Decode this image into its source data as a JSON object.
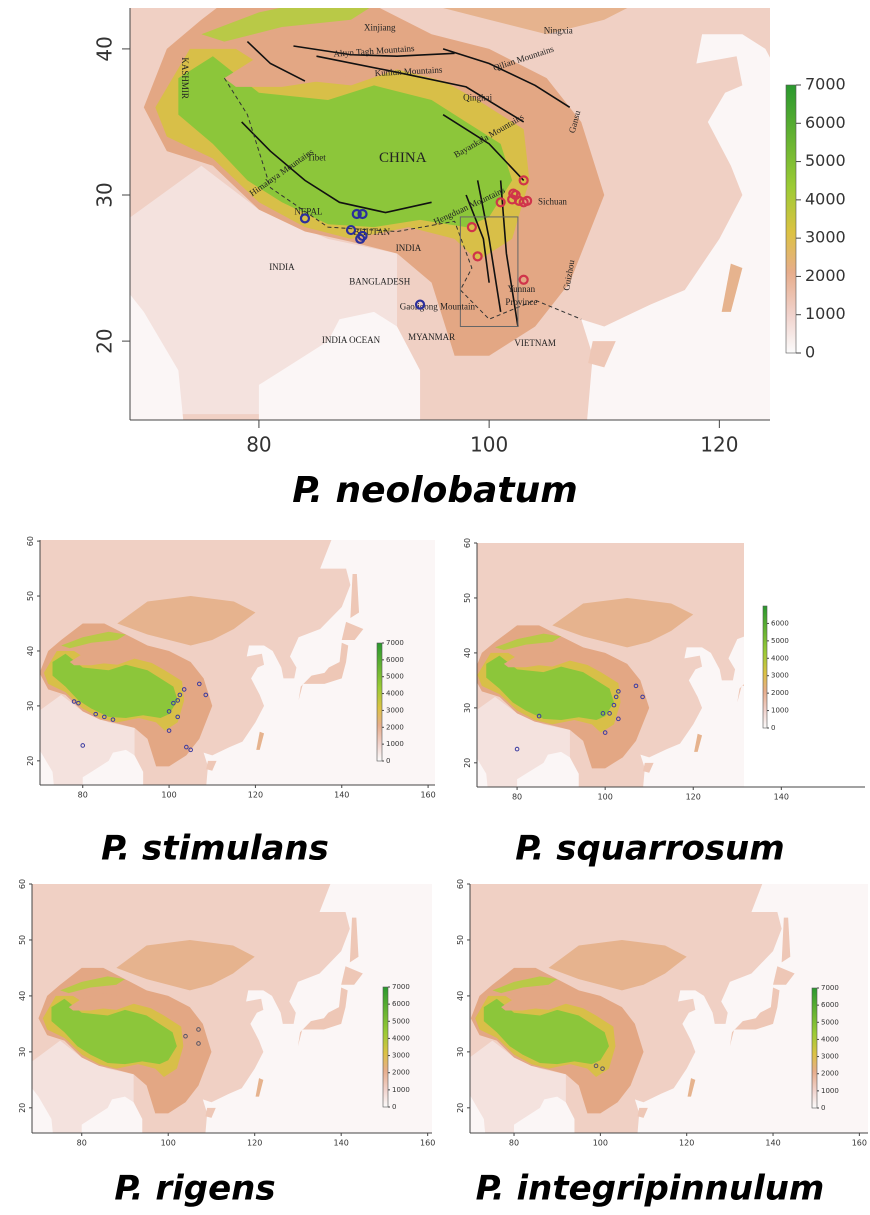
{
  "panels": [
    {
      "title": "P. neolobatum",
      "xlim": [
        68.8,
        124.4
      ],
      "ylim": [
        14.6,
        42.8
      ],
      "xticks": [
        80,
        100,
        120
      ],
      "yticks": [
        20,
        30,
        40
      ],
      "colorbar": {
        "lim": [
          0,
          7000
        ],
        "ticks": [
          0,
          1000,
          2000,
          3000,
          4000,
          5000,
          6000,
          7000
        ]
      },
      "points": [
        {
          "color": "#2b2f9c",
          "x": [
            84,
            88,
            88.5,
            89,
            89,
            88.8,
            94
          ],
          "y": [
            28.4,
            27.6,
            28.7,
            28.7,
            27.2,
            27,
            22.5
          ]
        },
        {
          "color": "#d0344a",
          "x": [
            98.5,
            99,
            101,
            102,
            102.3,
            102.6,
            103,
            103.3,
            103,
            103,
            102.1
          ],
          "y": [
            27.8,
            25.8,
            29.5,
            29.7,
            30,
            29.6,
            29.5,
            29.6,
            31,
            24.2,
            30.1
          ]
        }
      ],
      "labels": [
        "Xinjiang",
        "Altyn Tagh Mountains",
        "Qilian Mountains",
        "Ningxia",
        "Kunlun Mountains",
        "Qinghai",
        "Gansu",
        "Bayankala Mountains",
        "Tibet",
        "CHINA",
        "Sichuan",
        "Hengduan Mountains",
        "Himalaya Mountains",
        "KASHMIR",
        "NEPAL",
        "BHUTAN",
        "INDIA",
        "INDIA",
        "BANGLADESH",
        "Gaoligong Mountain",
        "MYANMAR",
        "INDIA OCEAN",
        "VIETNAM",
        "Yunnan",
        "Province",
        "Guizhou"
      ]
    },
    {
      "title": "P. stimulans",
      "xlim": [
        70.1,
        161.6
      ],
      "ylim": [
        15.6,
        60.2
      ],
      "xticks": [
        80,
        100,
        120,
        140,
        160
      ],
      "yticks": [
        20,
        30,
        40,
        50,
        60
      ],
      "colorbar": {
        "lim": [
          0,
          7000
        ],
        "ticks": [
          0,
          1000,
          2000,
          3000,
          4000,
          5000,
          6000,
          7000
        ]
      },
      "points": [
        {
          "color": "#3a3aa0",
          "x": [
            78,
            79,
            83,
            85,
            87,
            80,
            100,
            100,
            101,
            102,
            102.5,
            103.5,
            107,
            108.5,
            102,
            104,
            105
          ],
          "y": [
            30.8,
            30.5,
            28.5,
            28,
            27.5,
            22.8,
            25.5,
            29,
            30.5,
            31,
            32,
            33,
            34,
            32,
            28,
            22.5,
            22
          ]
        }
      ]
    },
    {
      "title": "P. squarrosum",
      "xlim": [
        70.9,
        159
      ],
      "ylim": [
        15.6,
        60
      ],
      "xticks": [
        80,
        100,
        120,
        140
      ],
      "yticks": [
        20,
        30,
        40,
        50,
        60
      ],
      "colorbar": {
        "lim": [
          0,
          7000
        ],
        "ticks": [
          0,
          1000,
          2000,
          3000,
          4000,
          5000,
          6000
        ]
      },
      "points": [
        {
          "color": "#3a3aa0",
          "x": [
            80,
            85,
            100,
            99.5,
            101,
            102,
            102.5,
            103,
            107,
            108.5,
            103
          ],
          "y": [
            22.5,
            28.5,
            25.5,
            29,
            29,
            30.5,
            32,
            33,
            34,
            32,
            28
          ]
        }
      ]
    },
    {
      "title": "P. rigens",
      "xlim": [
        68.5,
        161
      ],
      "ylim": [
        15.5,
        60
      ],
      "xticks": [
        80,
        100,
        120,
        140,
        160
      ],
      "yticks": [
        20,
        30,
        40,
        50,
        60
      ],
      "colorbar": {
        "lim": [
          0,
          7000
        ],
        "ticks": [
          0,
          1000,
          2000,
          3000,
          4000,
          5000,
          6000,
          7000
        ]
      },
      "points": [
        {
          "color": "#555566",
          "x": [
            104,
            107,
            107
          ],
          "y": [
            32.8,
            34,
            31.5
          ]
        }
      ]
    },
    {
      "title": "P. integripinnulum",
      "xlim": [
        69.8,
        162
      ],
      "ylim": [
        15.5,
        60
      ],
      "xticks": [
        80,
        100,
        120,
        140,
        160
      ],
      "yticks": [
        20,
        30,
        40,
        50,
        60
      ],
      "colorbar": {
        "lim": [
          0,
          7000
        ],
        "ticks": [
          0,
          1000,
          2000,
          3000,
          4000,
          5000,
          6000,
          7000
        ]
      },
      "points": [
        {
          "color": "#555566",
          "x": [
            99,
            100.5
          ],
          "y": [
            27.5,
            27
          ]
        }
      ]
    }
  ]
}
